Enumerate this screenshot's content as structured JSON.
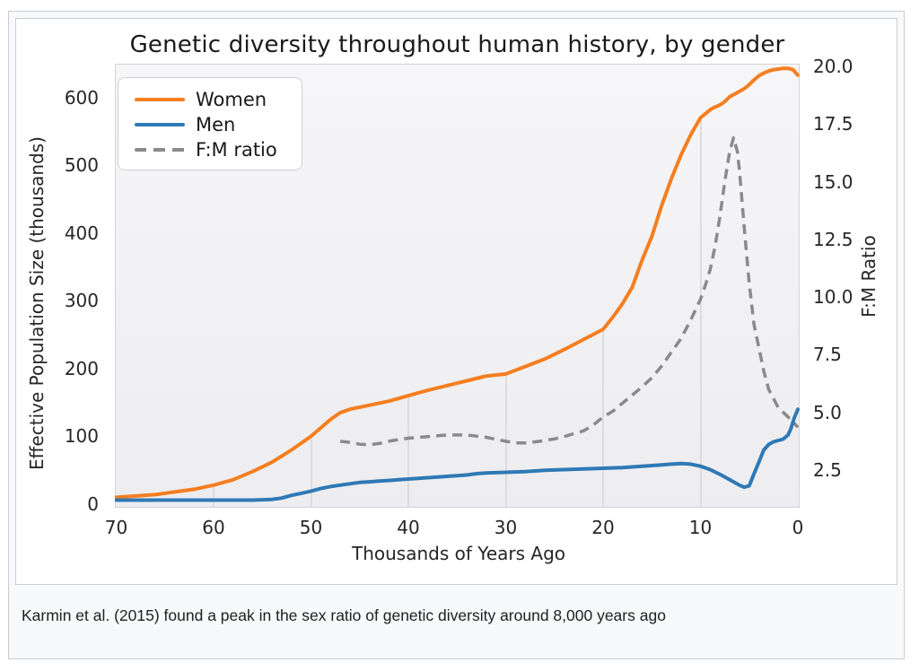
{
  "figure": {
    "caption": "Karmin et al. (2015) found a peak in the sex ratio of genetic diversity around 8,000 years ago"
  },
  "colors": {
    "women": "#f57e20",
    "men": "#2f79b5",
    "ratio": "#8a8a8a",
    "grid": "#dcdcdf",
    "thumb_bg": "#f8f9fa",
    "thumb_border": "#c8ccd1"
  },
  "chart_data": {
    "type": "line",
    "title": "Genetic diversity throughout human history, by gender",
    "xlabel": "Thousands of Years Ago",
    "ylabel_left": "Effective Population Size (thousands)",
    "ylabel_right": "F:M Ratio",
    "x_axis_reversed": true,
    "xlim": [
      70.5,
      -0.3
    ],
    "ylim_left": [
      -5,
      650
    ],
    "ylim_right": [
      0.9,
      20.1
    ],
    "x_ticks": [
      "70",
      "60",
      "50",
      "40",
      "30",
      "20",
      "10",
      "0"
    ],
    "x_tick_values": [
      70,
      60,
      50,
      40,
      30,
      20,
      10,
      0
    ],
    "y_ticks_left": [
      "0",
      "100",
      "200",
      "300",
      "400",
      "500",
      "600"
    ],
    "y_tick_values_left": [
      0,
      100,
      200,
      300,
      400,
      500,
      600
    ],
    "y_ticks_right": [
      "2.5",
      "5.0",
      "7.5",
      "10.0",
      "12.5",
      "15.0",
      "17.5",
      "20.0"
    ],
    "y_tick_values_right": [
      2.5,
      5.0,
      7.5,
      10.0,
      12.5,
      15.0,
      17.5,
      20.0
    ],
    "gridlines_x": [
      60,
      50,
      40,
      30,
      20,
      10
    ],
    "legend_position": "upper left",
    "legend": [
      {
        "label": "Women",
        "color": "#f57e20",
        "dashed": false
      },
      {
        "label": "Men",
        "color": "#2f79b5",
        "dashed": false
      },
      {
        "label": "F:M ratio",
        "color": "#8a8a8a",
        "dashed": true
      }
    ],
    "series": [
      {
        "name": "Women",
        "axis": "left",
        "color": "#f57e20",
        "dashed": false,
        "points": [
          [
            70,
            10
          ],
          [
            68,
            12
          ],
          [
            66,
            14
          ],
          [
            65,
            16
          ],
          [
            64,
            18
          ],
          [
            62,
            22
          ],
          [
            60,
            28
          ],
          [
            58,
            36
          ],
          [
            56,
            48
          ],
          [
            54,
            62
          ],
          [
            52,
            80
          ],
          [
            50,
            100
          ],
          [
            48,
            125
          ],
          [
            47,
            135
          ],
          [
            46,
            140
          ],
          [
            44,
            146
          ],
          [
            42,
            152
          ],
          [
            40,
            160
          ],
          [
            38,
            168
          ],
          [
            36,
            175
          ],
          [
            34,
            182
          ],
          [
            32,
            189
          ],
          [
            30,
            192
          ],
          [
            28,
            203
          ],
          [
            26,
            214
          ],
          [
            24,
            228
          ],
          [
            22,
            243
          ],
          [
            20,
            258
          ],
          [
            19,
            276
          ],
          [
            18,
            296
          ],
          [
            17,
            320
          ],
          [
            16,
            360
          ],
          [
            15,
            395
          ],
          [
            14,
            440
          ],
          [
            13,
            480
          ],
          [
            12,
            515
          ],
          [
            11,
            545
          ],
          [
            10,
            570
          ],
          [
            9,
            582
          ],
          [
            8.5,
            586
          ],
          [
            8,
            589
          ],
          [
            7.5,
            594
          ],
          [
            7,
            601
          ],
          [
            6.5,
            605
          ],
          [
            6,
            609
          ],
          [
            5.5,
            613
          ],
          [
            5,
            619
          ],
          [
            4.5,
            626
          ],
          [
            4,
            632
          ],
          [
            3.5,
            636
          ],
          [
            3,
            639
          ],
          [
            2.5,
            641
          ],
          [
            2,
            642
          ],
          [
            1.5,
            643
          ],
          [
            1,
            643
          ],
          [
            0.5,
            641
          ],
          [
            0,
            633
          ]
        ]
      },
      {
        "name": "Men",
        "axis": "left",
        "color": "#2f79b5",
        "dashed": false,
        "points": [
          [
            70,
            6
          ],
          [
            65,
            6
          ],
          [
            60,
            6
          ],
          [
            56,
            6
          ],
          [
            54,
            7
          ],
          [
            53,
            9
          ],
          [
            52,
            13
          ],
          [
            51,
            16
          ],
          [
            50,
            19
          ],
          [
            49,
            23
          ],
          [
            48,
            26
          ],
          [
            47,
            28
          ],
          [
            46,
            30
          ],
          [
            45,
            32
          ],
          [
            44,
            33
          ],
          [
            43,
            34
          ],
          [
            42,
            35
          ],
          [
            41,
            36
          ],
          [
            40,
            37
          ],
          [
            38,
            39
          ],
          [
            36,
            41
          ],
          [
            34,
            43
          ],
          [
            33,
            45
          ],
          [
            32,
            46
          ],
          [
            30,
            47
          ],
          [
            28,
            48
          ],
          [
            26,
            50
          ],
          [
            24,
            51
          ],
          [
            22,
            52
          ],
          [
            20,
            53
          ],
          [
            18,
            54
          ],
          [
            16,
            56
          ],
          [
            14,
            58
          ],
          [
            13,
            59
          ],
          [
            12,
            60
          ],
          [
            11,
            59
          ],
          [
            10,
            56
          ],
          [
            9,
            51
          ],
          [
            8,
            44
          ],
          [
            7,
            36
          ],
          [
            6,
            28
          ],
          [
            5.5,
            25
          ],
          [
            5,
            27
          ],
          [
            4.5,
            45
          ],
          [
            4,
            62
          ],
          [
            3.5,
            80
          ],
          [
            3,
            88
          ],
          [
            2.5,
            92
          ],
          [
            2,
            94
          ],
          [
            1.5,
            96
          ],
          [
            1,
            102
          ],
          [
            0.7,
            112
          ],
          [
            0.4,
            126
          ],
          [
            0,
            140
          ]
        ]
      },
      {
        "name": "F:M ratio",
        "axis": "right",
        "color": "#8a8a8a",
        "dashed": true,
        "points": [
          [
            47,
            3.75
          ],
          [
            46,
            3.7
          ],
          [
            45,
            3.62
          ],
          [
            44,
            3.6
          ],
          [
            43,
            3.65
          ],
          [
            42,
            3.75
          ],
          [
            41,
            3.82
          ],
          [
            40,
            3.88
          ],
          [
            38,
            3.95
          ],
          [
            36,
            4.02
          ],
          [
            34,
            4.02
          ],
          [
            32,
            3.92
          ],
          [
            30,
            3.75
          ],
          [
            29,
            3.68
          ],
          [
            28,
            3.68
          ],
          [
            27,
            3.72
          ],
          [
            26,
            3.78
          ],
          [
            25,
            3.85
          ],
          [
            24,
            3.95
          ],
          [
            23,
            4.08
          ],
          [
            22,
            4.2
          ],
          [
            21,
            4.45
          ],
          [
            20,
            4.8
          ],
          [
            19,
            5.05
          ],
          [
            18,
            5.4
          ],
          [
            17,
            5.75
          ],
          [
            16,
            6.1
          ],
          [
            15,
            6.5
          ],
          [
            14,
            7.0
          ],
          [
            13,
            7.6
          ],
          [
            12,
            8.2
          ],
          [
            11,
            9.0
          ],
          [
            10,
            9.9
          ],
          [
            9.5,
            10.5
          ],
          [
            9,
            11.2
          ],
          [
            8.5,
            12.2
          ],
          [
            8,
            13.5
          ],
          [
            7.5,
            15.0
          ],
          [
            7,
            16.3
          ],
          [
            6.6,
            16.9
          ],
          [
            6.2,
            16.3
          ],
          [
            6,
            15.5
          ],
          [
            5.5,
            13.0
          ],
          [
            5,
            10.6
          ],
          [
            4.5,
            8.8
          ],
          [
            4,
            7.8
          ],
          [
            3.5,
            6.8
          ],
          [
            3,
            6.0
          ],
          [
            2.5,
            5.6
          ],
          [
            2,
            5.2
          ],
          [
            1.5,
            5.0
          ],
          [
            1,
            4.8
          ],
          [
            0.5,
            4.6
          ],
          [
            0,
            4.35
          ]
        ]
      }
    ],
    "annotations": {
      "ratio_peak": {
        "x_kya": 7,
        "ratio": 17,
        "note": "peak in F:M ratio ~8,000 years ago"
      }
    }
  }
}
